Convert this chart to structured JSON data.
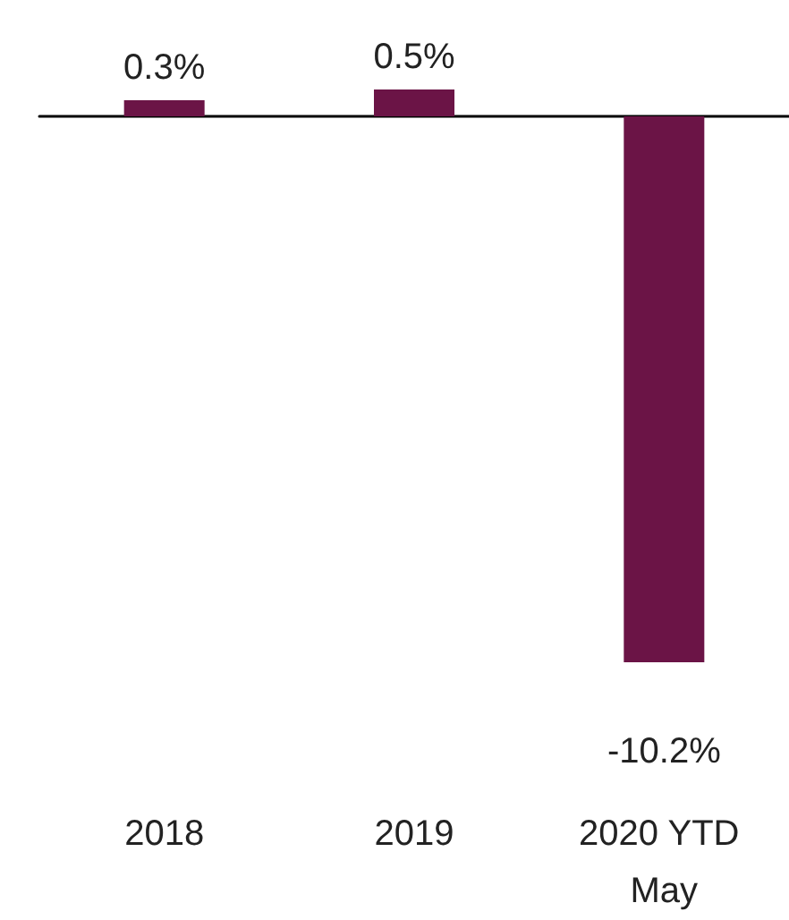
{
  "chart_data": {
    "type": "bar",
    "categories": [
      "2018",
      "2019",
      "2020 YTD May"
    ],
    "values": [
      0.3,
      0.5,
      -10.2
    ],
    "value_labels": [
      "0.3%",
      "0.5%",
      "-10.2%"
    ],
    "color": "#6b1446"
  }
}
